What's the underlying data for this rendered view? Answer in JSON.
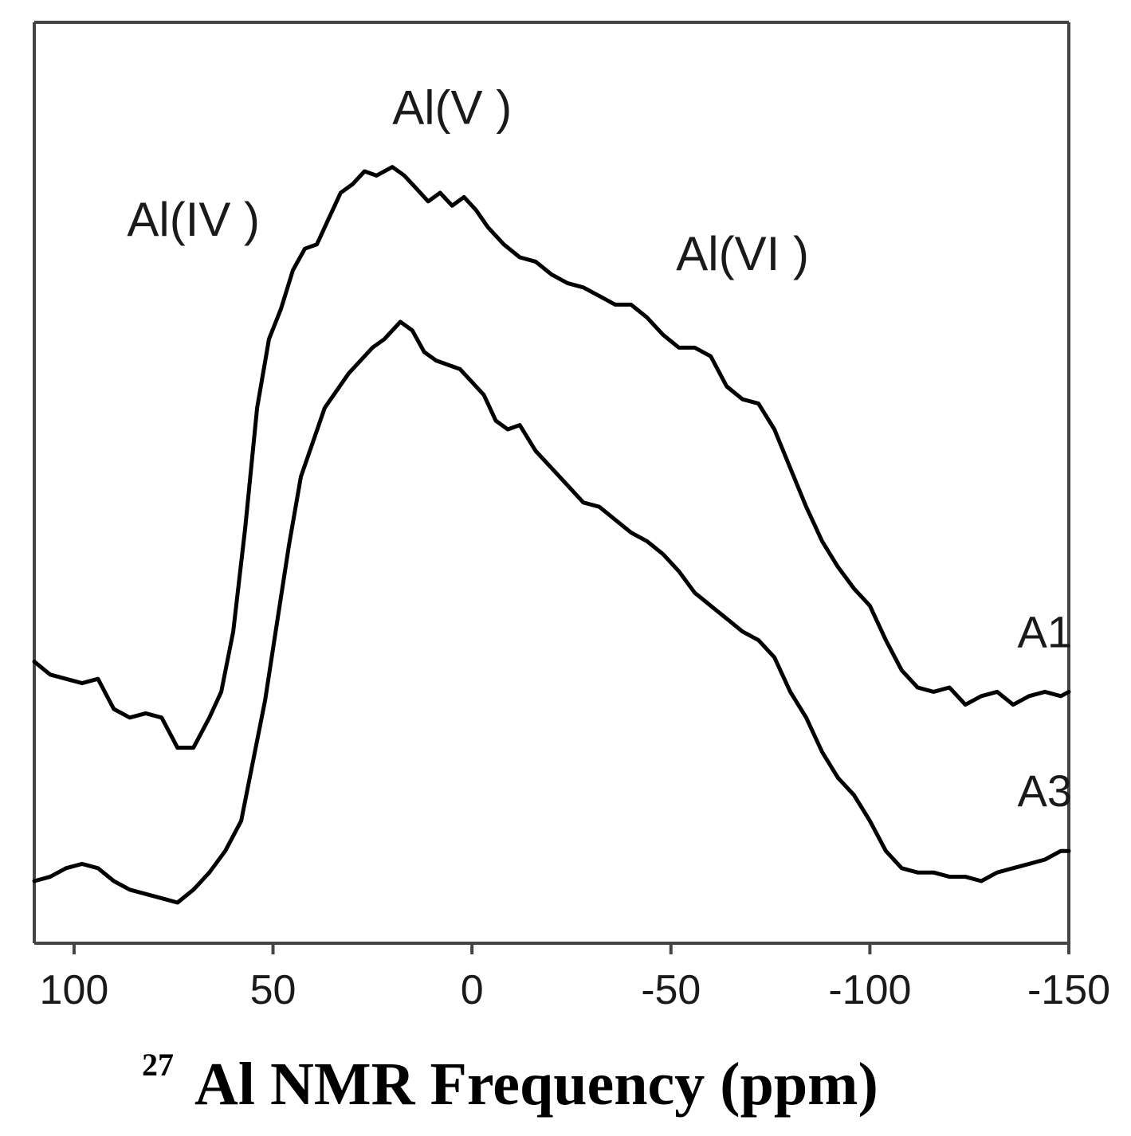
{
  "chart_data": {
    "type": "line",
    "title": "",
    "xlabel": {
      "superscript": "27",
      "text": "Al NMR Frequency (ppm)"
    },
    "ylabel": "",
    "x_reversed": true,
    "xlim": [
      110,
      -150
    ],
    "ylim": [
      0,
      1
    ],
    "y_ticks_shown": false,
    "grid": false,
    "x_ticks": [
      {
        "value": 100,
        "label": "100"
      },
      {
        "value": 50,
        "label": "50"
      },
      {
        "value": 0,
        "label": "0"
      },
      {
        "value": -50,
        "label": "-50"
      },
      {
        "value": -100,
        "label": "-100"
      },
      {
        "value": -150,
        "label": "-150"
      }
    ],
    "annotations": [
      {
        "text": "Al(IV )",
        "x": 70,
        "y": 0.8
      },
      {
        "text": "Al(V )",
        "x": 5,
        "y": 0.93
      },
      {
        "text": "Al(VI )",
        "x": -68,
        "y": 0.76
      }
    ],
    "series": [
      {
        "name": "A1",
        "x": [
          110,
          106,
          102,
          98,
          94,
          90,
          86,
          82,
          78,
          74,
          70,
          66,
          63,
          60,
          57,
          54,
          51,
          48,
          45,
          42,
          39,
          36,
          33,
          30,
          27,
          24,
          20,
          17,
          14,
          11,
          8,
          5,
          2,
          -1,
          -4,
          -8,
          -12,
          -16,
          -20,
          -24,
          -28,
          -32,
          -36,
          -40,
          -44,
          -48,
          -52,
          -56,
          -60,
          -64,
          -68,
          -72,
          -76,
          -80,
          -84,
          -88,
          -92,
          -96,
          -100,
          -104,
          -108,
          -112,
          -116,
          -120,
          -124,
          -128,
          -132,
          -136,
          -140,
          -144,
          -148,
          -150
        ],
        "y": [
          0.305,
          0.29,
          0.285,
          0.28,
          0.285,
          0.25,
          0.24,
          0.245,
          0.24,
          0.205,
          0.205,
          0.24,
          0.27,
          0.34,
          0.46,
          0.6,
          0.68,
          0.715,
          0.76,
          0.785,
          0.79,
          0.82,
          0.85,
          0.86,
          0.875,
          0.87,
          0.88,
          0.87,
          0.855,
          0.84,
          0.85,
          0.835,
          0.845,
          0.83,
          0.81,
          0.79,
          0.775,
          0.77,
          0.755,
          0.745,
          0.74,
          0.73,
          0.72,
          0.72,
          0.705,
          0.685,
          0.67,
          0.67,
          0.66,
          0.625,
          0.61,
          0.605,
          0.575,
          0.53,
          0.485,
          0.445,
          0.415,
          0.39,
          0.37,
          0.33,
          0.295,
          0.275,
          0.27,
          0.275,
          0.255,
          0.265,
          0.27,
          0.255,
          0.265,
          0.27,
          0.265,
          0.27
        ]
      },
      {
        "name": "A3",
        "x": [
          110,
          106,
          102,
          98,
          94,
          90,
          86,
          82,
          78,
          74,
          70,
          66,
          62,
          58,
          55,
          52,
          49,
          46,
          43,
          40,
          37,
          34,
          31,
          28,
          25,
          22,
          18,
          15,
          12,
          9,
          6,
          3,
          0,
          -3,
          -6,
          -9,
          -12,
          -16,
          -20,
          -24,
          -28,
          -32,
          -36,
          -40,
          -44,
          -48,
          -52,
          -56,
          -60,
          -64,
          -68,
          -72,
          -76,
          -80,
          -84,
          -88,
          -92,
          -96,
          -100,
          -104,
          -108,
          -112,
          -116,
          -120,
          -124,
          -128,
          -132,
          -136,
          -140,
          -144,
          -148,
          -150
        ],
        "y": [
          0.05,
          0.055,
          0.065,
          0.07,
          0.065,
          0.05,
          0.04,
          0.035,
          0.03,
          0.025,
          0.04,
          0.06,
          0.085,
          0.12,
          0.19,
          0.26,
          0.35,
          0.44,
          0.52,
          0.56,
          0.6,
          0.62,
          0.64,
          0.655,
          0.67,
          0.68,
          0.7,
          0.69,
          0.665,
          0.655,
          0.65,
          0.645,
          0.63,
          0.615,
          0.585,
          0.575,
          0.58,
          0.55,
          0.53,
          0.51,
          0.49,
          0.485,
          0.47,
          0.455,
          0.445,
          0.43,
          0.41,
          0.385,
          0.37,
          0.355,
          0.34,
          0.33,
          0.31,
          0.27,
          0.24,
          0.2,
          0.17,
          0.15,
          0.12,
          0.085,
          0.065,
          0.06,
          0.06,
          0.055,
          0.055,
          0.05,
          0.06,
          0.065,
          0.07,
          0.075,
          0.085,
          0.085
        ]
      }
    ]
  }
}
